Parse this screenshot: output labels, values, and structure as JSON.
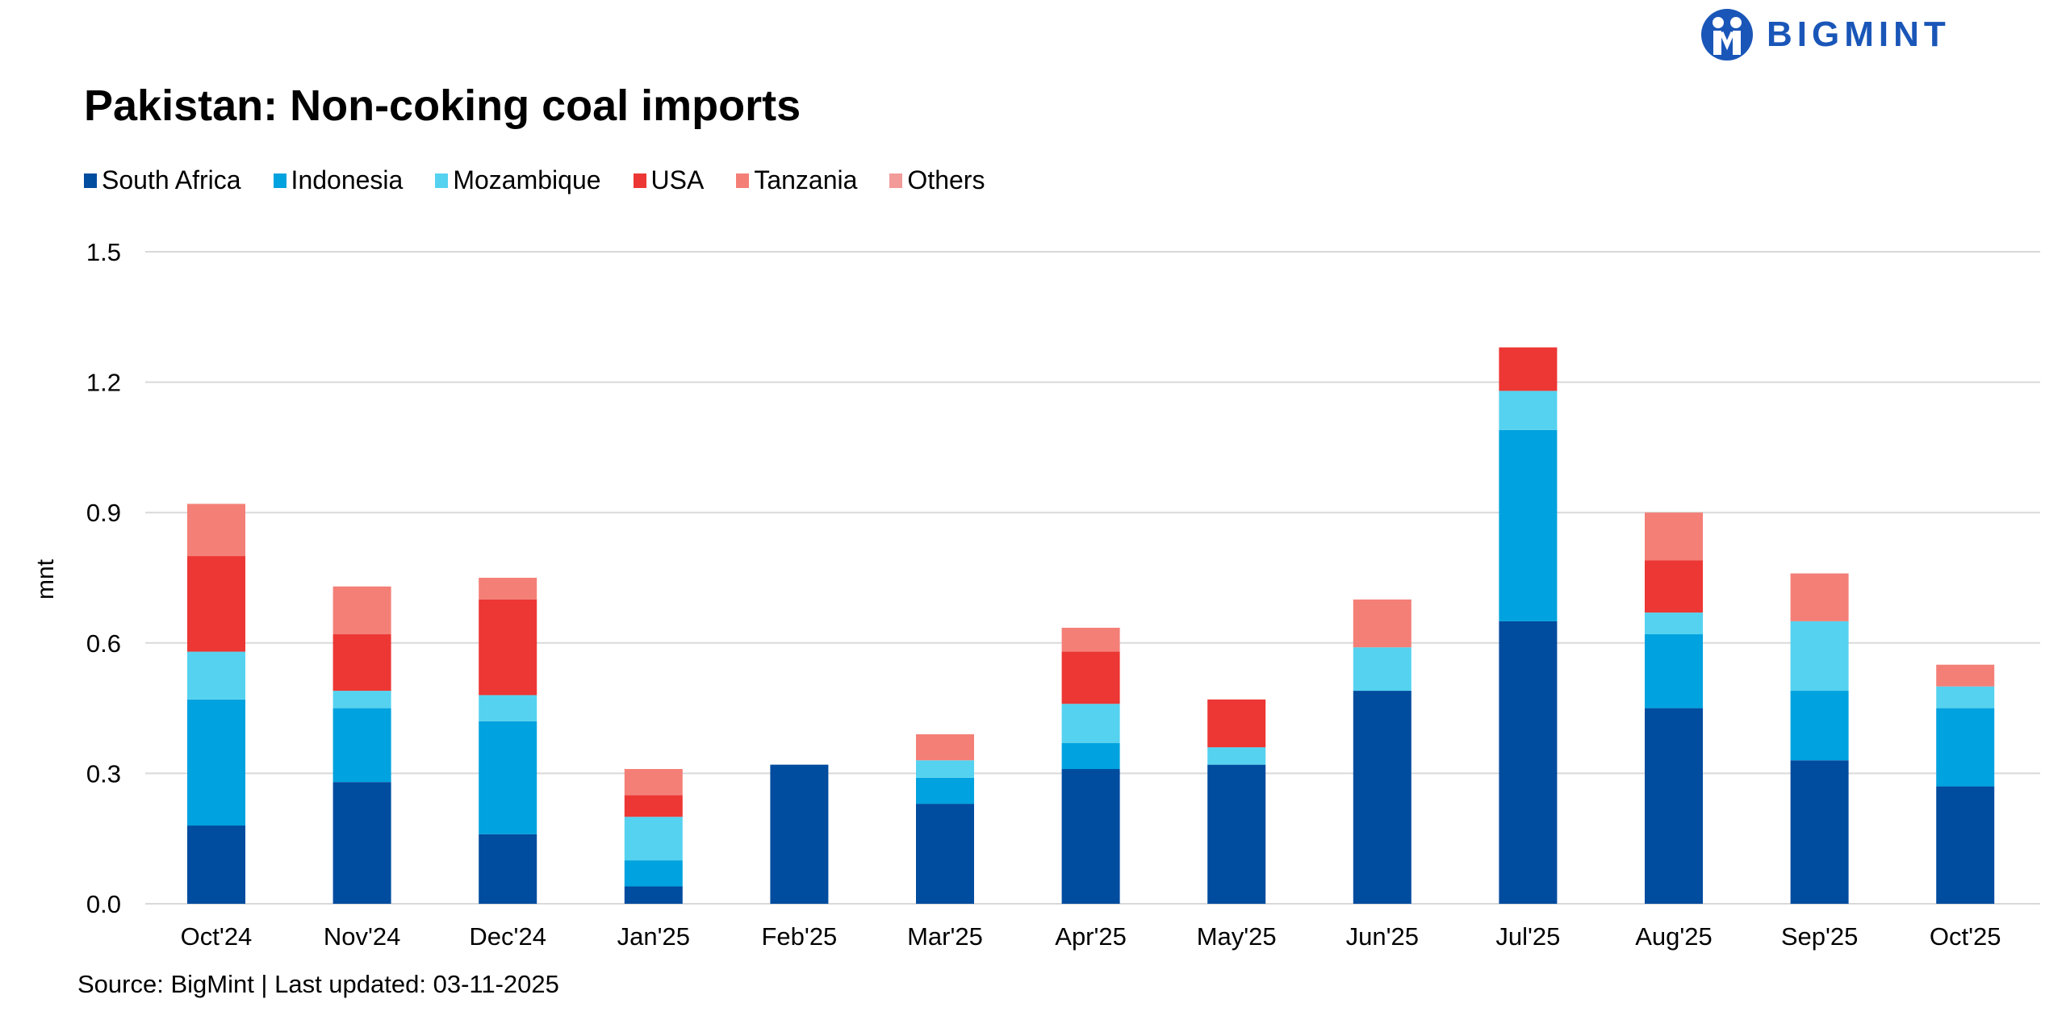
{
  "logo": {
    "text": "BIGMINT",
    "color": "#1a56b8"
  },
  "chart_data": {
    "type": "bar",
    "stacked": true,
    "title": "Pakistan: Non-coking coal imports",
    "ylabel": "mnt",
    "xlabel": "",
    "ylim": [
      0,
      1.5
    ],
    "yticks": [
      "0.0",
      "0.3",
      "0.6",
      "0.9",
      "1.2",
      "1.5"
    ],
    "grid": true,
    "legend_position": "top-left",
    "categories": [
      "Oct'24",
      "Nov'24",
      "Dec'24",
      "Jan'25",
      "Feb'25",
      "Mar'25",
      "Apr'25",
      "May'25",
      "Jun'25",
      "Jul'25",
      "Aug'25",
      "Sep'25",
      "Oct'25"
    ],
    "series": [
      {
        "name": "South Africa",
        "color": "#004c9f",
        "values": [
          0.18,
          0.28,
          0.16,
          0.04,
          0.32,
          0.23,
          0.31,
          0.32,
          0.49,
          0.65,
          0.45,
          0.33,
          0.27
        ]
      },
      {
        "name": "Indonesia",
        "color": "#00a2df",
        "values": [
          0.29,
          0.17,
          0.26,
          0.06,
          0,
          0.06,
          0.06,
          0,
          0,
          0.44,
          0.17,
          0.16,
          0.18
        ]
      },
      {
        "name": "Mozambique",
        "color": "#55d2ef",
        "values": [
          0.11,
          0.04,
          0.06,
          0.1,
          0,
          0.04,
          0.09,
          0.04,
          0.1,
          0.09,
          0.05,
          0.16,
          0.05
        ]
      },
      {
        "name": "USA",
        "color": "#ec3734",
        "values": [
          0.22,
          0.13,
          0.22,
          0.05,
          0,
          0,
          0.12,
          0.11,
          0,
          0.1,
          0.12,
          0,
          0
        ]
      },
      {
        "name": "Tanzania",
        "color": "#f47f77",
        "values": [
          0.12,
          0.11,
          0.05,
          0.06,
          0,
          0.06,
          0.055,
          0,
          0.11,
          0,
          0.11,
          0.11,
          0.05
        ]
      },
      {
        "name": "Others",
        "color": "#f29b99",
        "values": [
          0,
          0,
          0,
          0,
          0,
          0,
          0,
          0,
          0,
          0,
          0,
          0,
          0
        ]
      }
    ]
  },
  "source": "Source: BigMint | Last updated: 03-11-2025"
}
